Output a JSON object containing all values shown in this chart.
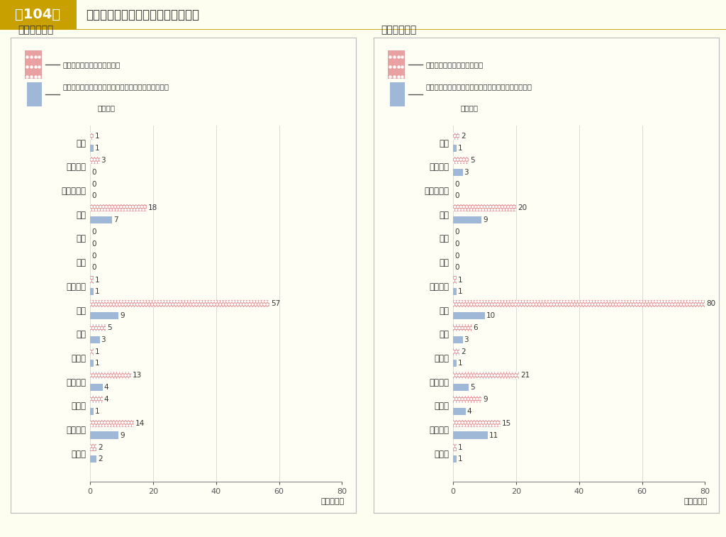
{
  "title_box": "第104図",
  "title_text": "資金不足額の状況（事業別会計数）",
  "subtitle_left": "平成２２年度",
  "subtitle_right": "平成２１年度",
  "categories": [
    "水道",
    "簡易水道",
    "工業用水道",
    "交通",
    "電気",
    "ガス",
    "港湾整備",
    "病院",
    "市場",
    "と畜場",
    "宅地造成",
    "下水道",
    "観光施設",
    "その他"
  ],
  "left_bar1": [
    1,
    3,
    0,
    18,
    0,
    0,
    1,
    57,
    5,
    1,
    13,
    4,
    14,
    2
  ],
  "left_bar2": [
    1,
    0,
    0,
    7,
    0,
    0,
    1,
    9,
    3,
    1,
    4,
    1,
    9,
    2
  ],
  "right_bar1": [
    2,
    5,
    0,
    20,
    0,
    0,
    1,
    80,
    6,
    2,
    21,
    9,
    15,
    1
  ],
  "right_bar2": [
    1,
    3,
    0,
    9,
    0,
    0,
    1,
    10,
    3,
    1,
    5,
    4,
    11,
    1
  ],
  "bar1_color": "#e8a0a0",
  "bar2_color": "#a0b8d8",
  "xlabel": "（会計数）",
  "xlim": [
    0,
    80
  ],
  "xticks": [
    0,
    20,
    40,
    60,
    80
  ],
  "bg_color": "#fdfdf0",
  "panel_bg": "#fefef5",
  "title_gold": "#c8a000",
  "title_bg_light": "#f5f0e0",
  "legend1_text": "資金不足額がある公営会計数",
  "legend2_line1": "うち資金不足比率が経営健全化基準以上である公営企",
  "legend2_line2": "業会計数",
  "outer_border": "#bbbbbb",
  "grid_color": "#cccccc",
  "text_color": "#333333",
  "axis_color": "#888888"
}
